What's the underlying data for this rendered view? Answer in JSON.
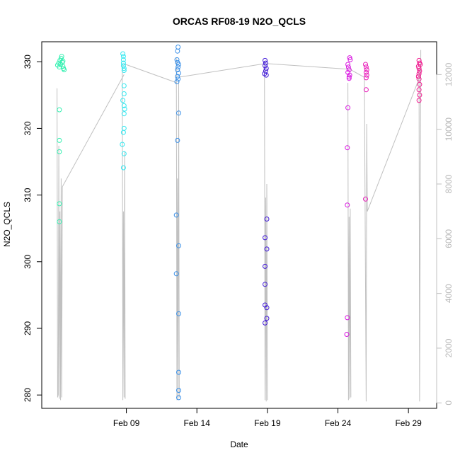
{
  "chart_data": {
    "type": "scatter",
    "title": "ORCAS RF08-19 N2O_QCLS",
    "xlabel": "Date",
    "ylabel": "N2O_QCLS",
    "ylim": [
      278,
      333
    ],
    "y2lim": [
      -200,
      13200
    ],
    "xlim": [
      "2016-02-03",
      "2016-03-02"
    ],
    "x_ticks": [
      {
        "date": "2016-02-09",
        "label": "Feb 09"
      },
      {
        "date": "2016-02-14",
        "label": "Feb 14"
      },
      {
        "date": "2016-02-19",
        "label": "Feb 19"
      },
      {
        "date": "2016-02-24",
        "label": "Feb 24"
      },
      {
        "date": "2016-02-29",
        "label": "Feb 29"
      }
    ],
    "y_ticks": [
      280,
      290,
      300,
      310,
      320,
      330
    ],
    "y2_ticks": [
      0,
      2000,
      4000,
      6000,
      8000,
      10000,
      12000
    ],
    "grid": false,
    "legend": "none",
    "altitude_color": "#c0c0c0",
    "series": [
      {
        "color": "#33f0b0",
        "points": [
          [
            "2016-02-04 06:00",
            322.8
          ],
          [
            "2016-02-04 06:00",
            318.2
          ],
          [
            "2016-02-04 06:00",
            316.5
          ],
          [
            "2016-02-04 06:00",
            308.7
          ],
          [
            "2016-02-04 06:00",
            306.0
          ],
          [
            "2016-02-04 03:00",
            329.5
          ],
          [
            "2016-02-04 05:00",
            329.8
          ],
          [
            "2016-02-04 07:00",
            330.2
          ],
          [
            "2016-02-04 09:00",
            330.5
          ],
          [
            "2016-02-04 10:00",
            330.8
          ],
          [
            "2016-02-04 11:00",
            329.9
          ],
          [
            "2016-02-04 12:00",
            329.3
          ],
          [
            "2016-02-04 13:00",
            329.0
          ],
          [
            "2016-02-04 14:00",
            328.8
          ],
          [
            "2016-02-04 08:00",
            329.6
          ],
          [
            "2016-02-04 06:00",
            329.2
          ],
          [
            "2016-02-04 12:00",
            330.1
          ]
        ]
      },
      {
        "color": "#33e8f0",
        "points": [
          [
            "2016-02-08 18:00",
            331.2
          ],
          [
            "2016-02-08 19:00",
            330.8
          ],
          [
            "2016-02-08 19:00",
            330.3
          ],
          [
            "2016-02-08 19:00",
            329.8
          ],
          [
            "2016-02-08 19:00",
            329.4
          ],
          [
            "2016-02-08 20:00",
            329.0
          ],
          [
            "2016-02-08 20:00",
            328.7
          ],
          [
            "2016-02-08 20:00",
            326.4
          ],
          [
            "2016-02-08 20:00",
            325.2
          ],
          [
            "2016-02-08 18:00",
            324.2
          ],
          [
            "2016-02-08 20:00",
            323.4
          ],
          [
            "2016-02-08 21:00",
            322.9
          ],
          [
            "2016-02-08 20:00",
            322.2
          ],
          [
            "2016-02-08 20:00",
            320.0
          ],
          [
            "2016-02-08 19:00",
            319.4
          ],
          [
            "2016-02-08 17:00",
            317.6
          ],
          [
            "2016-02-08 20:00",
            316.2
          ],
          [
            "2016-02-08 19:00",
            314.1
          ]
        ]
      },
      {
        "color": "#3a90e8",
        "points": [
          [
            "2016-02-12 16:00",
            332.2
          ],
          [
            "2016-02-12 15:00",
            331.6
          ],
          [
            "2016-02-12 14:00",
            330.3
          ],
          [
            "2016-02-12 15:00",
            329.9
          ],
          [
            "2016-02-12 17:00",
            329.6
          ],
          [
            "2016-02-12 16:00",
            329.2
          ],
          [
            "2016-02-12 15:00",
            328.8
          ],
          [
            "2016-02-12 17:00",
            328.3
          ],
          [
            "2016-02-12 15:00",
            327.8
          ],
          [
            "2016-02-12 16:00",
            327.4
          ],
          [
            "2016-02-12 14:00",
            327.0
          ],
          [
            "2016-02-12 17:00",
            322.3
          ],
          [
            "2016-02-12 15:00",
            318.2
          ],
          [
            "2016-02-12 13:00",
            307.0
          ],
          [
            "2016-02-12 17:00",
            302.4
          ],
          [
            "2016-02-12 13:00",
            298.2
          ],
          [
            "2016-02-12 17:00",
            292.2
          ],
          [
            "2016-02-12 17:00",
            283.4
          ],
          [
            "2016-02-12 17:00",
            280.7
          ],
          [
            "2016-02-12 17:00",
            279.6
          ]
        ]
      },
      {
        "color": "#4018d8",
        "points": [
          [
            "2016-02-18 20:00",
            330.2
          ],
          [
            "2016-02-18 21:00",
            329.8
          ],
          [
            "2016-02-18 20:00",
            329.4
          ],
          [
            "2016-02-18 22:00",
            329.0
          ],
          [
            "2016-02-18 21:00",
            328.6
          ],
          [
            "2016-02-18 19:00",
            328.2
          ],
          [
            "2016-02-18 22:00",
            328.0
          ],
          [
            "2016-02-18 23:00",
            306.4
          ],
          [
            "2016-02-18 20:00",
            303.6
          ],
          [
            "2016-02-18 23:00",
            301.9
          ],
          [
            "2016-02-18 20:00",
            299.3
          ],
          [
            "2016-02-18 20:00",
            296.6
          ],
          [
            "2016-02-18 20:00",
            293.5
          ],
          [
            "2016-02-18 23:00",
            293.1
          ],
          [
            "2016-02-18 23:00",
            291.5
          ],
          [
            "2016-02-18 20:00",
            290.8
          ]
        ]
      },
      {
        "color": "#d818e0",
        "points": [
          [
            "2016-02-24 20:00",
            330.6
          ],
          [
            "2016-02-24 21:00",
            330.3
          ],
          [
            "2016-02-24 17:00",
            329.6
          ],
          [
            "2016-02-24 18:00",
            329.2
          ],
          [
            "2016-02-24 19:00",
            328.8
          ],
          [
            "2016-02-24 17:00",
            328.4
          ],
          [
            "2016-02-24 20:00",
            328.0
          ],
          [
            "2016-02-24 19:00",
            327.7
          ],
          [
            "2016-02-24 19:00",
            327.5
          ],
          [
            "2016-02-24 17:00",
            323.1
          ],
          [
            "2016-02-24 16:00",
            317.1
          ],
          [
            "2016-02-24 16:00",
            308.5
          ],
          [
            "2016-02-24 16:00",
            291.6
          ],
          [
            "2016-02-24 15:00",
            289.1
          ]
        ]
      },
      {
        "color": "#e818b8",
        "points": [
          [
            "2016-02-25 23:00",
            329.6
          ],
          [
            "2016-02-26 00:00",
            329.2
          ],
          [
            "2016-02-26 01:00",
            328.8
          ],
          [
            "2016-02-26 00:00",
            328.4
          ],
          [
            "2016-02-26 01:00",
            328.0
          ],
          [
            "2016-02-26 00:00",
            327.6
          ],
          [
            "2016-02-26 00:00",
            325.8
          ],
          [
            "2016-02-25 23:00",
            309.4
          ]
        ]
      },
      {
        "color": "#f0188e",
        "points": [
          [
            "2016-02-29 18:00",
            330.2
          ],
          [
            "2016-02-29 19:00",
            329.8
          ],
          [
            "2016-02-29 20:00",
            329.6
          ],
          [
            "2016-02-29 17:00",
            329.3
          ],
          [
            "2016-02-29 18:00",
            329.0
          ],
          [
            "2016-02-29 19:00",
            328.6
          ],
          [
            "2016-02-29 18:00",
            328.2
          ],
          [
            "2016-02-29 17:00",
            327.8
          ],
          [
            "2016-02-29 18:00",
            327.4
          ],
          [
            "2016-02-29 19:00",
            326.6
          ],
          [
            "2016-02-29 18:00",
            325.8
          ],
          [
            "2016-02-29 19:00",
            325.0
          ],
          [
            "2016-02-29 18:00",
            324.2
          ]
        ]
      }
    ],
    "altitude_segments": [
      [
        [
          "2016-02-04 02:00",
          11500
        ],
        [
          "2016-02-04 03:00",
          200
        ],
        [
          "2016-02-04 04:00",
          300
        ],
        [
          "2016-02-04 05:00",
          9400
        ],
        [
          "2016-02-04 06:00",
          150
        ],
        [
          "2016-02-04 07:00",
          7000
        ],
        [
          "2016-02-04 08:00",
          100
        ],
        [
          "2016-02-04 09:00",
          8200
        ],
        [
          "2016-02-04 10:00",
          200
        ],
        [
          "2016-02-04 11:00",
          7900
        ]
      ],
      [
        [
          "2016-02-04 11:00",
          7900
        ],
        [
          "2016-02-08 20:00",
          12000
        ]
      ],
      [
        [
          "2016-02-08 17:00",
          12400
        ],
        [
          "2016-02-08 18:00",
          100
        ],
        [
          "2016-02-08 19:00",
          7000
        ],
        [
          "2016-02-08 20:00",
          200
        ],
        [
          "2016-02-08 21:00",
          9200
        ],
        [
          "2016-02-08 22:00",
          150
        ]
      ],
      [
        [
          "2016-02-08 19:00",
          12400
        ],
        [
          "2016-02-12 14:00",
          11700
        ]
      ],
      [
        [
          "2016-02-12 13:00",
          12600
        ],
        [
          "2016-02-12 14:00",
          100
        ],
        [
          "2016-02-12 15:00",
          8200
        ],
        [
          "2016-02-12 16:00",
          150
        ],
        [
          "2016-02-12 17:00",
          11800
        ],
        [
          "2016-02-12 18:00",
          200
        ]
      ],
      [
        [
          "2016-02-12 16:00",
          11900
        ],
        [
          "2016-02-18 20:00",
          12400
        ]
      ],
      [
        [
          "2016-02-18 19:00",
          12500
        ],
        [
          "2016-02-18 20:00",
          100
        ],
        [
          "2016-02-18 21:00",
          7500
        ],
        [
          "2016-02-18 22:00",
          50
        ],
        [
          "2016-02-18 23:00",
          8000
        ],
        [
          "2016-02-19 00:00",
          100
        ]
      ],
      [
        [
          "2016-02-18 23:00",
          12400
        ],
        [
          "2016-02-24 18:00",
          12200
        ]
      ],
      [
        [
          "2016-02-24 17:00",
          11700
        ],
        [
          "2016-02-24 18:00",
          100
        ],
        [
          "2016-02-24 19:00",
          6800
        ],
        [
          "2016-02-24 20:00",
          150
        ],
        [
          "2016-02-24 21:00",
          7100
        ],
        [
          "2016-02-24 22:00",
          200
        ]
      ],
      [
        [
          "2016-02-24 20:00",
          12200
        ],
        [
          "2016-02-25 21:00",
          11900
        ],
        [
          "2016-02-26 00:00",
          50
        ],
        [
          "2016-02-26 01:00",
          10200
        ],
        [
          "2016-02-26 02:00",
          7000
        ]
      ],
      [
        [
          "2016-02-26 02:00",
          7000
        ],
        [
          "2016-02-29 19:00",
          11900
        ]
      ],
      [
        [
          "2016-02-29 18:00",
          12200
        ],
        [
          "2016-02-29 19:00",
          50
        ],
        [
          "2016-02-29 20:00",
          6800
        ],
        [
          "2016-02-29 21:00",
          12900
        ]
      ]
    ]
  }
}
